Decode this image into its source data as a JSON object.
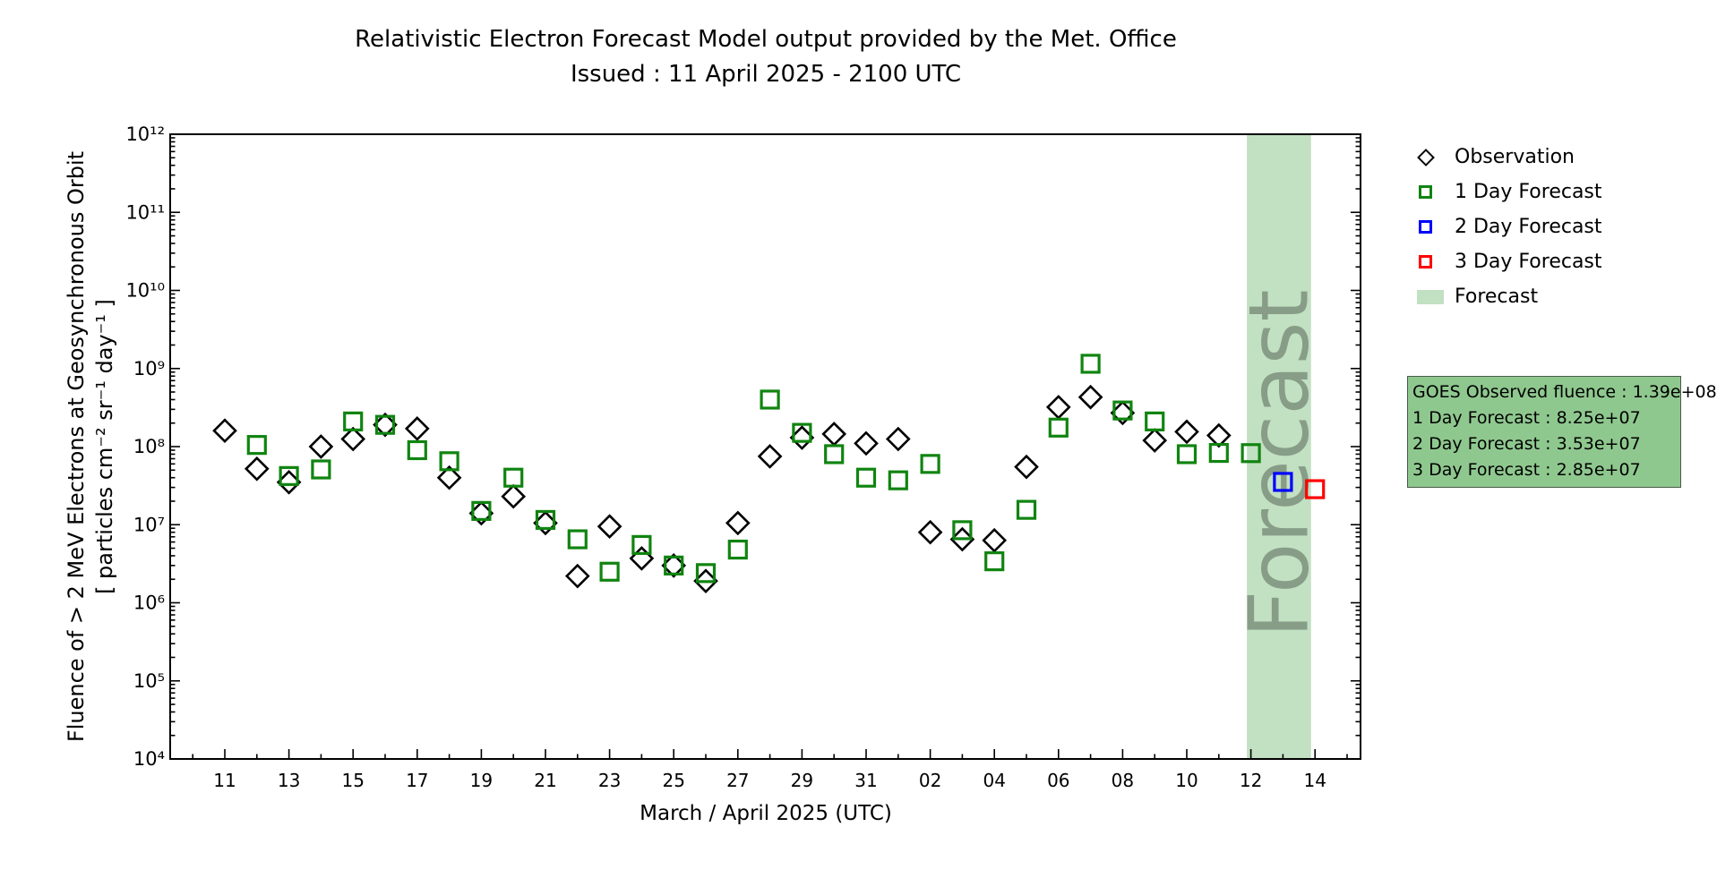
{
  "header": {
    "title": "Relativistic Electron Forecast Model output provided by the Met. Office",
    "subtitle": "Issued : 11 April 2025 - 2100 UTC"
  },
  "legend": {
    "items": [
      {
        "label": "Observation",
        "marker": "diamond",
        "color": "#000000"
      },
      {
        "label": "1 Day Forecast",
        "marker": "square",
        "color": "#108410"
      },
      {
        "label": "2 Day Forecast",
        "marker": "square",
        "color": "#0000ff"
      },
      {
        "label": "3 Day Forecast",
        "marker": "square",
        "color": "#ff0000"
      },
      {
        "label": "Forecast",
        "marker": "band",
        "color": "#c2e0c2"
      }
    ]
  },
  "info_box": {
    "fill": "#8fc88f",
    "border": "#4a5a4a",
    "lines": [
      "GOES Observed fluence : 1.39e+08",
      "1 Day Forecast : 8.25e+07",
      "2 Day Forecast : 3.53e+07",
      "3 Day Forecast : 2.85e+07"
    ]
  },
  "chart_data": {
    "type": "scatter",
    "title": "Relativistic Electron Forecast Model output provided by the Met. Office",
    "subtitle": "Issued : 11 April 2025 - 2100 UTC",
    "xlabel": "March / April 2025 (UTC)",
    "ylabel_line1": "Fluence of > 2 MeV Electrons at Geosynchronous Orbit",
    "ylabel_line2": "[ particles cm⁻² sr⁻¹ day⁻¹ ]",
    "y_scale": "log",
    "ylim_exponents": [
      4,
      12
    ],
    "y_ticks": [
      {
        "exp": 4,
        "label": "10⁴"
      },
      {
        "exp": 5,
        "label": "10⁵"
      },
      {
        "exp": 6,
        "label": "10⁶"
      },
      {
        "exp": 7,
        "label": "10⁷"
      },
      {
        "exp": 8,
        "label": "10⁸"
      },
      {
        "exp": 9,
        "label": "10⁹"
      },
      {
        "exp": 10,
        "label": "10¹⁰"
      },
      {
        "exp": 11,
        "label": "10¹¹"
      },
      {
        "exp": 12,
        "label": "10¹²"
      }
    ],
    "x_axis_origin": "2025-03-11",
    "xlim_days": [
      -1.7,
      35.4
    ],
    "x_major_ticks": [
      {
        "t": 0,
        "label": "11"
      },
      {
        "t": 2,
        "label": "13"
      },
      {
        "t": 4,
        "label": "15"
      },
      {
        "t": 6,
        "label": "17"
      },
      {
        "t": 8,
        "label": "19"
      },
      {
        "t": 10,
        "label": "21"
      },
      {
        "t": 12,
        "label": "23"
      },
      {
        "t": 14,
        "label": "25"
      },
      {
        "t": 16,
        "label": "27"
      },
      {
        "t": 18,
        "label": "29"
      },
      {
        "t": 20,
        "label": "31"
      },
      {
        "t": 22,
        "label": "02"
      },
      {
        "t": 24,
        "label": "04"
      },
      {
        "t": 26,
        "label": "06"
      },
      {
        "t": 28,
        "label": "08"
      },
      {
        "t": 30,
        "label": "10"
      },
      {
        "t": 32,
        "label": "12"
      },
      {
        "t": 34,
        "label": "14"
      }
    ],
    "forecast_band": {
      "label": "Forecast",
      "start_t": 31.875,
      "end_t": 33.875,
      "start": "11 April 2025 2100 UTC",
      "end": "13 April 2025 2100 UTC",
      "color": "#c2e0c2"
    },
    "watermark": {
      "text": "Forecast",
      "color": "#4d5d4d",
      "opacity": 0.5
    },
    "colors": {
      "observation": "#000000",
      "forecast1": "#108410",
      "forecast2": "#0000ff",
      "forecast3": "#ff0000",
      "band": "#c2e0c2"
    },
    "series": [
      {
        "name": "Observation",
        "marker": "diamond",
        "color_key": "observation",
        "points": [
          {
            "date": "Mar 11",
            "t": 0,
            "value": 160000000.0
          },
          {
            "date": "Mar 12",
            "t": 1,
            "value": 52000000.0
          },
          {
            "date": "Mar 13",
            "t": 2,
            "value": 35000000.0
          },
          {
            "date": "Mar 14",
            "t": 3,
            "value": 100000000.0
          },
          {
            "date": "Mar 15",
            "t": 4,
            "value": 125000000.0
          },
          {
            "date": "Mar 16",
            "t": 5,
            "value": 190000000.0
          },
          {
            "date": "Mar 17",
            "t": 6,
            "value": 170000000.0
          },
          {
            "date": "Mar 18",
            "t": 7,
            "value": 40000000.0
          },
          {
            "date": "Mar 19",
            "t": 8,
            "value": 14000000.0
          },
          {
            "date": "Mar 20",
            "t": 9,
            "value": 23000000.0
          },
          {
            "date": "Mar 21",
            "t": 10,
            "value": 10500000.0
          },
          {
            "date": "Mar 22",
            "t": 11,
            "value": 2200000.0
          },
          {
            "date": "Mar 23",
            "t": 12,
            "value": 9500000.0
          },
          {
            "date": "Mar 24",
            "t": 13,
            "value": 3700000.0
          },
          {
            "date": "Mar 25",
            "t": 14,
            "value": 3000000.0
          },
          {
            "date": "Mar 26",
            "t": 15,
            "value": 1900000.0
          },
          {
            "date": "Mar 27",
            "t": 16,
            "value": 10500000.0
          },
          {
            "date": "Mar 28",
            "t": 17,
            "value": 75000000.0
          },
          {
            "date": "Mar 29",
            "t": 18,
            "value": 130000000.0
          },
          {
            "date": "Mar 30",
            "t": 19,
            "value": 145000000.0
          },
          {
            "date": "Mar 31",
            "t": 20,
            "value": 110000000.0
          },
          {
            "date": "Apr 01",
            "t": 21,
            "value": 125000000.0
          },
          {
            "date": "Apr 02",
            "t": 22,
            "value": 8000000.0
          },
          {
            "date": "Apr 03",
            "t": 23,
            "value": 6500000.0
          },
          {
            "date": "Apr 04",
            "t": 24,
            "value": 6300000.0
          },
          {
            "date": "Apr 05",
            "t": 25,
            "value": 55000000.0
          },
          {
            "date": "Apr 06",
            "t": 26,
            "value": 320000000.0
          },
          {
            "date": "Apr 07",
            "t": 27,
            "value": 430000000.0
          },
          {
            "date": "Apr 08",
            "t": 28,
            "value": 270000000.0
          },
          {
            "date": "Apr 09",
            "t": 29,
            "value": 120000000.0
          },
          {
            "date": "Apr 10",
            "t": 30,
            "value": 155000000.0
          },
          {
            "date": "Apr 11",
            "t": 31,
            "value": 139000000.0
          }
        ]
      },
      {
        "name": "1 Day Forecast",
        "marker": "square",
        "color_key": "forecast1",
        "points": [
          {
            "date": "Mar 12",
            "t": 1,
            "value": 105000000.0
          },
          {
            "date": "Mar 13",
            "t": 2,
            "value": 42000000.0
          },
          {
            "date": "Mar 14",
            "t": 3,
            "value": 51000000.0
          },
          {
            "date": "Mar 15",
            "t": 4,
            "value": 210000000.0
          },
          {
            "date": "Mar 16",
            "t": 5,
            "value": 190000000.0
          },
          {
            "date": "Mar 17",
            "t": 6,
            "value": 90000000.0
          },
          {
            "date": "Mar 18",
            "t": 7,
            "value": 65000000.0
          },
          {
            "date": "Mar 19",
            "t": 8,
            "value": 15000000.0
          },
          {
            "date": "Mar 20",
            "t": 9,
            "value": 40000000.0
          },
          {
            "date": "Mar 21",
            "t": 10,
            "value": 11500000.0
          },
          {
            "date": "Mar 22",
            "t": 11,
            "value": 6500000.0
          },
          {
            "date": "Mar 23",
            "t": 12,
            "value": 2500000.0
          },
          {
            "date": "Mar 24",
            "t": 13,
            "value": 5500000.0
          },
          {
            "date": "Mar 25",
            "t": 14,
            "value": 3000000.0
          },
          {
            "date": "Mar 26",
            "t": 15,
            "value": 2400000.0
          },
          {
            "date": "Mar 27",
            "t": 16,
            "value": 4800000.0
          },
          {
            "date": "Mar 28",
            "t": 17,
            "value": 400000000.0
          },
          {
            "date": "Mar 29",
            "t": 18,
            "value": 150000000.0
          },
          {
            "date": "Mar 30",
            "t": 19,
            "value": 80000000.0
          },
          {
            "date": "Mar 31",
            "t": 20,
            "value": 40000000.0
          },
          {
            "date": "Apr 01",
            "t": 21,
            "value": 37000000.0
          },
          {
            "date": "Apr 02",
            "t": 22,
            "value": 60000000.0
          },
          {
            "date": "Apr 03",
            "t": 23,
            "value": 8500000.0
          },
          {
            "date": "Apr 04",
            "t": 24,
            "value": 3400000.0
          },
          {
            "date": "Apr 05",
            "t": 25,
            "value": 15500000.0
          },
          {
            "date": "Apr 06",
            "t": 26,
            "value": 175000000.0
          },
          {
            "date": "Apr 07",
            "t": 27,
            "value": 1150000000.0
          },
          {
            "date": "Apr 08",
            "t": 28,
            "value": 290000000.0
          },
          {
            "date": "Apr 09",
            "t": 29,
            "value": 210000000.0
          },
          {
            "date": "Apr 10",
            "t": 30,
            "value": 80000000.0
          },
          {
            "date": "Apr 11",
            "t": 31,
            "value": 83000000.0
          },
          {
            "date": "Apr 12",
            "t": 32,
            "value": 82500000.0
          }
        ]
      },
      {
        "name": "2 Day Forecast",
        "marker": "square",
        "color_key": "forecast2",
        "points": [
          {
            "date": "Apr 13",
            "t": 33,
            "value": 35300000.0
          }
        ]
      },
      {
        "name": "3 Day Forecast",
        "marker": "square",
        "color_key": "forecast3",
        "points": [
          {
            "date": "Apr 14",
            "t": 34,
            "value": 28500000.0
          }
        ]
      }
    ]
  }
}
